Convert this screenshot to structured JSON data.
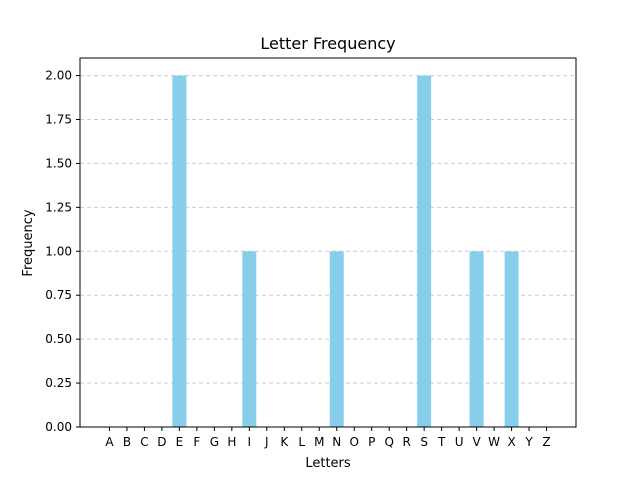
{
  "chart_data": {
    "type": "bar",
    "title": "Letter Frequency",
    "xlabel": "Letters",
    "ylabel": "Frequency",
    "categories": [
      "A",
      "B",
      "C",
      "D",
      "E",
      "F",
      "G",
      "H",
      "I",
      "J",
      "K",
      "L",
      "M",
      "N",
      "O",
      "P",
      "Q",
      "R",
      "S",
      "T",
      "U",
      "V",
      "W",
      "X",
      "Y",
      "Z"
    ],
    "values": [
      0,
      0,
      0,
      0,
      2,
      0,
      0,
      0,
      1,
      0,
      0,
      0,
      0,
      1,
      0,
      0,
      0,
      0,
      2,
      0,
      0,
      1,
      0,
      1,
      0,
      0
    ],
    "ylim": [
      0,
      2.1
    ],
    "yticks": [
      "0.00",
      "0.25",
      "0.50",
      "0.75",
      "1.00",
      "1.25",
      "1.50",
      "1.75",
      "2.00"
    ],
    "grid": "y-axis dashed",
    "bar_color": "#87CEEB",
    "grid_color": "#cccccc",
    "axis_color": "#000000"
  }
}
